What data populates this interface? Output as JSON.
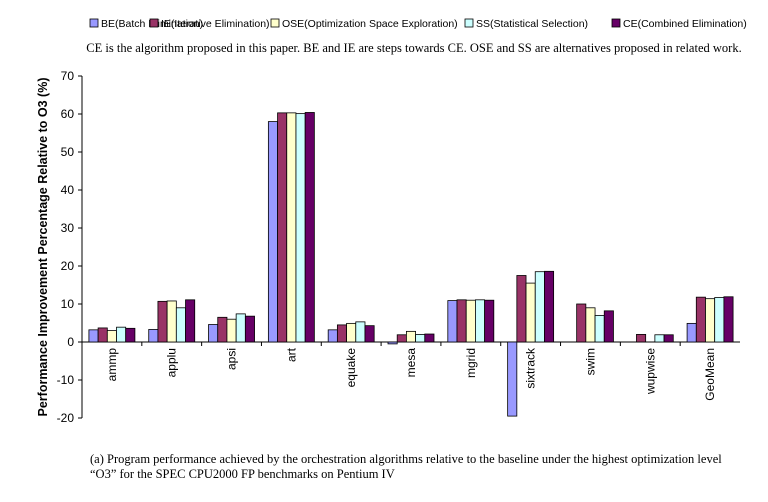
{
  "caption": "(a) Program performance achieved by the orchestration algorithms relative to the baseline under the highest optimization level “O3” for the SPEC CPU2000 FP benchmarks on Pentium IV",
  "chart_data": {
    "type": "bar",
    "note": "CE is the algorithm proposed in this paper. BE and IE are steps towards CE. OSE and SS are alternatives proposed in related work.",
    "ylabel": "Performance Improvement Percentage Relative to O3 (%)",
    "xlabel": "",
    "ylim": [
      -20,
      70
    ],
    "yticks": [
      -20,
      -10,
      0,
      10,
      20,
      30,
      40,
      50,
      60,
      70
    ],
    "grid": "none",
    "legend_position": "top",
    "categories": [
      "ammp",
      "applu",
      "apsi",
      "art",
      "equake",
      "mesa",
      "mgrid",
      "sixtrack",
      "swim",
      "wupwise",
      "GeoMean"
    ],
    "series": [
      {
        "name": "BE(Batch Elimination)",
        "color": "#9999ff",
        "values": [
          3.2,
          3.3,
          4.6,
          58.0,
          3.2,
          -0.5,
          10.9,
          -19.5,
          0,
          0,
          4.9
        ]
      },
      {
        "name": "IE(Iterative Elimination)",
        "color": "#993366",
        "values": [
          3.7,
          10.7,
          6.5,
          60.3,
          4.5,
          1.9,
          11.1,
          17.5,
          10.0,
          2.0,
          11.8
        ]
      },
      {
        "name": "OSE(Optimization Space Exploration)",
        "color": "#ffffcc",
        "values": [
          3.0,
          10.8,
          6.0,
          60.3,
          4.9,
          2.8,
          11.0,
          15.5,
          9.0,
          0,
          11.4
        ]
      },
      {
        "name": "SS(Statistical Selection)",
        "color": "#ccffff",
        "values": [
          3.9,
          9.0,
          7.4,
          60.1,
          5.3,
          2.0,
          11.1,
          18.5,
          7.0,
          1.9,
          11.7
        ]
      },
      {
        "name": "CE(Combined Elimination)",
        "color": "#660066",
        "values": [
          3.6,
          11.1,
          6.8,
          60.4,
          4.3,
          2.1,
          11.0,
          18.6,
          8.2,
          1.9,
          11.9
        ]
      }
    ]
  }
}
